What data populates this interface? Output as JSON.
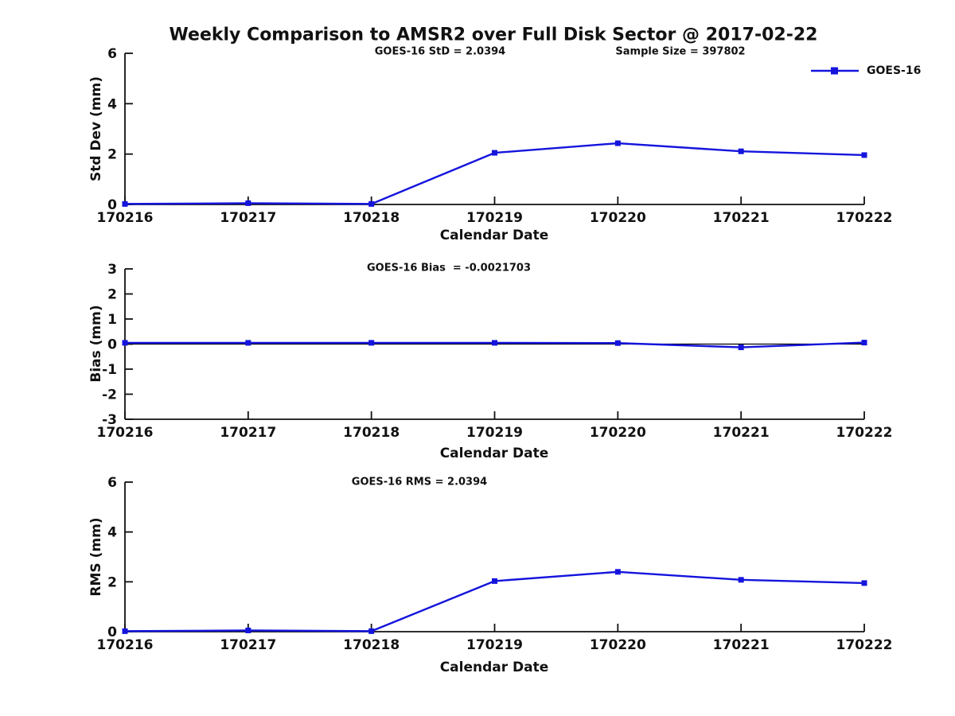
{
  "header": {
    "title": "Weekly Comparison to AMSR2 over Full Disk Sector @ 2017-02-22"
  },
  "legend": {
    "label": "GOES-16",
    "color": "#1414dd"
  },
  "chart_data": [
    {
      "type": "line",
      "title": "GOES-16 StD = 2.0394",
      "annotation": "Sample Size = 397802",
      "xlabel": "Calendar Date",
      "ylabel": "Std Dev (mm)",
      "x": [
        "170216",
        "170217",
        "170218",
        "170219",
        "170220",
        "170221",
        "170222"
      ],
      "ylim": [
        0,
        6
      ],
      "yticks": [
        0,
        2,
        4,
        6
      ],
      "grid": false,
      "legend_position": "top-right-outside",
      "series": [
        {
          "name": "GOES-16",
          "color": "#1414dd",
          "marker": "square",
          "values": [
            0.02,
            0.05,
            0.02,
            2.05,
            2.43,
            2.11,
            1.96
          ]
        }
      ]
    },
    {
      "type": "line",
      "title": "GOES-16 Bias  = -0.0021703",
      "annotation": "",
      "xlabel": "Calendar Date",
      "ylabel": "Bias (mm)",
      "x": [
        "170216",
        "170217",
        "170218",
        "170219",
        "170220",
        "170221",
        "170222"
      ],
      "ylim": [
        -3,
        3
      ],
      "yticks": [
        3,
        2,
        1,
        0,
        -1,
        -2,
        -3
      ],
      "grid": false,
      "zero_line": true,
      "series": [
        {
          "name": "GOES-16",
          "color": "#1414dd",
          "marker": "square",
          "values": [
            0.05,
            0.05,
            0.05,
            0.05,
            0.04,
            -0.13,
            0.06
          ]
        }
      ]
    },
    {
      "type": "line",
      "title": "GOES-16 RMS = 2.0394",
      "annotation": "",
      "xlabel": "Calendar Date",
      "ylabel": "RMS (mm)",
      "x": [
        "170216",
        "170217",
        "170218",
        "170219",
        "170220",
        "170221",
        "170222"
      ],
      "ylim": [
        0,
        6
      ],
      "yticks": [
        0,
        2,
        4,
        6
      ],
      "grid": false,
      "series": [
        {
          "name": "GOES-16",
          "color": "#1414dd",
          "marker": "square",
          "values": [
            0.02,
            0.05,
            0.02,
            2.03,
            2.4,
            2.08,
            1.95
          ]
        }
      ]
    }
  ]
}
